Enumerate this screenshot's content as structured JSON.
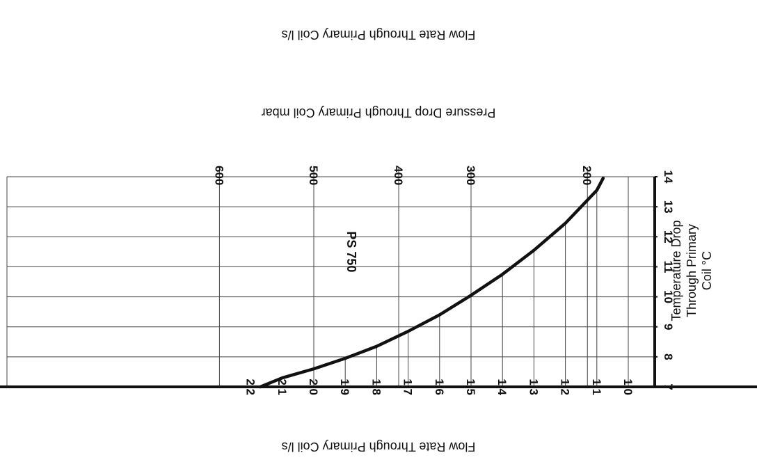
{
  "chart_data": {
    "type": "line",
    "title_top": "Flow Rate Through Primary Coil l/s",
    "title_pressure": "Pressure Drop Through Primary Coil mbar",
    "xlabel": "Flow Rate Through Primary Coil l/s",
    "ylabel_lines": [
      "Temperature Drop",
      "Through Primary",
      "Coil °C"
    ],
    "x_ticks": [
      "2.2",
      "2.1",
      "2.0",
      "1.9",
      "1.8",
      "1.7",
      "1.6",
      "1.5",
      "1.4",
      "1.3",
      "1.2",
      "1.1",
      "1.0"
    ],
    "y_ticks": [
      "7",
      "8",
      "9",
      "10",
      "11",
      "12",
      "13",
      "14"
    ],
    "pressure_ticks": [
      {
        "label": "600",
        "flow": 2.3
      },
      {
        "label": "500",
        "flow": 2.0
      },
      {
        "label": "400",
        "flow": 1.73
      },
      {
        "label": "300",
        "flow": 1.5
      },
      {
        "label": "200",
        "flow": 1.13
      }
    ],
    "xlim": [
      2.2,
      1.0
    ],
    "ylim": [
      7,
      14
    ],
    "grid": true,
    "series": [
      {
        "name": "PS 750",
        "x": [
          2.17,
          2.1,
          2.0,
          1.9,
          1.8,
          1.7,
          1.6,
          1.5,
          1.4,
          1.3,
          1.2,
          1.1,
          1.08
        ],
        "y": [
          7.0,
          7.3,
          7.6,
          7.95,
          8.35,
          8.85,
          9.4,
          10.05,
          10.75,
          11.55,
          12.45,
          13.55,
          13.95
        ]
      }
    ],
    "orientation": "rotated-180"
  }
}
